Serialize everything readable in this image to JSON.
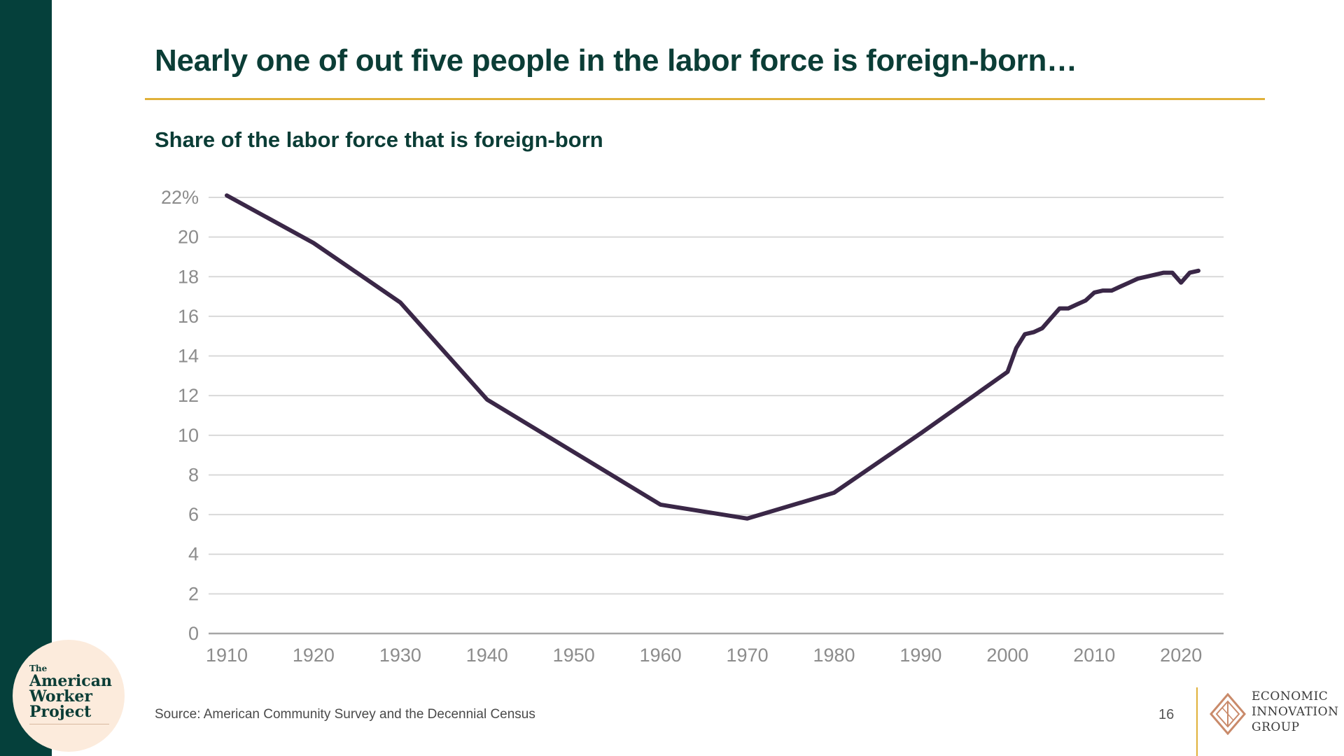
{
  "slide": {
    "title": "Nearly one of out five people in the labor force is foreign-born…",
    "source": "Source: American Community Survey and the Decennial Census",
    "page_number": "16"
  },
  "brand": {
    "awp": {
      "the": "The",
      "line1": "American",
      "line2": "Worker",
      "line3": "Project"
    },
    "eig": {
      "line1": "ECONOMIC",
      "line2": "INNOVATION",
      "line3": "GROUP"
    }
  },
  "colors": {
    "sidebar": "#05403b",
    "title": "#0b3d36",
    "accent_rule": "#e0b13a",
    "line": "#3a2747",
    "grid": "#d9d9d9",
    "tick_text": "#8c8c8c"
  },
  "chart_data": {
    "type": "line",
    "title": "Share of the labor force that is foreign-born",
    "xlabel": "",
    "ylabel": "",
    "xlim": [
      1910,
      2022
    ],
    "ylim": [
      0,
      22
    ],
    "y_ticks": [
      0,
      2,
      4,
      6,
      8,
      10,
      12,
      14,
      16,
      18,
      20,
      22
    ],
    "y_tick_labels": [
      "0",
      "2",
      "4",
      "6",
      "8",
      "10",
      "12",
      "14",
      "16",
      "18",
      "20",
      "22%"
    ],
    "x_ticks": [
      1910,
      1920,
      1930,
      1940,
      1950,
      1960,
      1970,
      1980,
      1990,
      2000,
      2010,
      2020
    ],
    "x_tick_labels": [
      "1910",
      "1920",
      "1930",
      "1940",
      "1950",
      "1960",
      "1970",
      "1980",
      "1990",
      "2000",
      "2010",
      "2020"
    ],
    "grid": "horizontal",
    "legend": "none",
    "series": [
      {
        "x": [
          1910,
          1920,
          1930,
          1940,
          1960,
          1970,
          1980,
          1990,
          2000,
          2001,
          2002,
          2003,
          2004,
          2005,
          2006,
          2007,
          2008,
          2009,
          2010,
          2011,
          2012,
          2013,
          2014,
          2015,
          2016,
          2017,
          2018,
          2019,
          2020,
          2021,
          2022
        ],
        "values": [
          22.1,
          19.7,
          16.7,
          11.8,
          6.5,
          5.8,
          7.1,
          10.1,
          13.2,
          14.4,
          15.1,
          15.2,
          15.4,
          15.9,
          16.4,
          16.4,
          16.6,
          16.8,
          17.2,
          17.3,
          17.3,
          17.5,
          17.7,
          17.9,
          18.0,
          18.1,
          18.2,
          18.2,
          17.7,
          18.2,
          18.3
        ]
      }
    ]
  }
}
